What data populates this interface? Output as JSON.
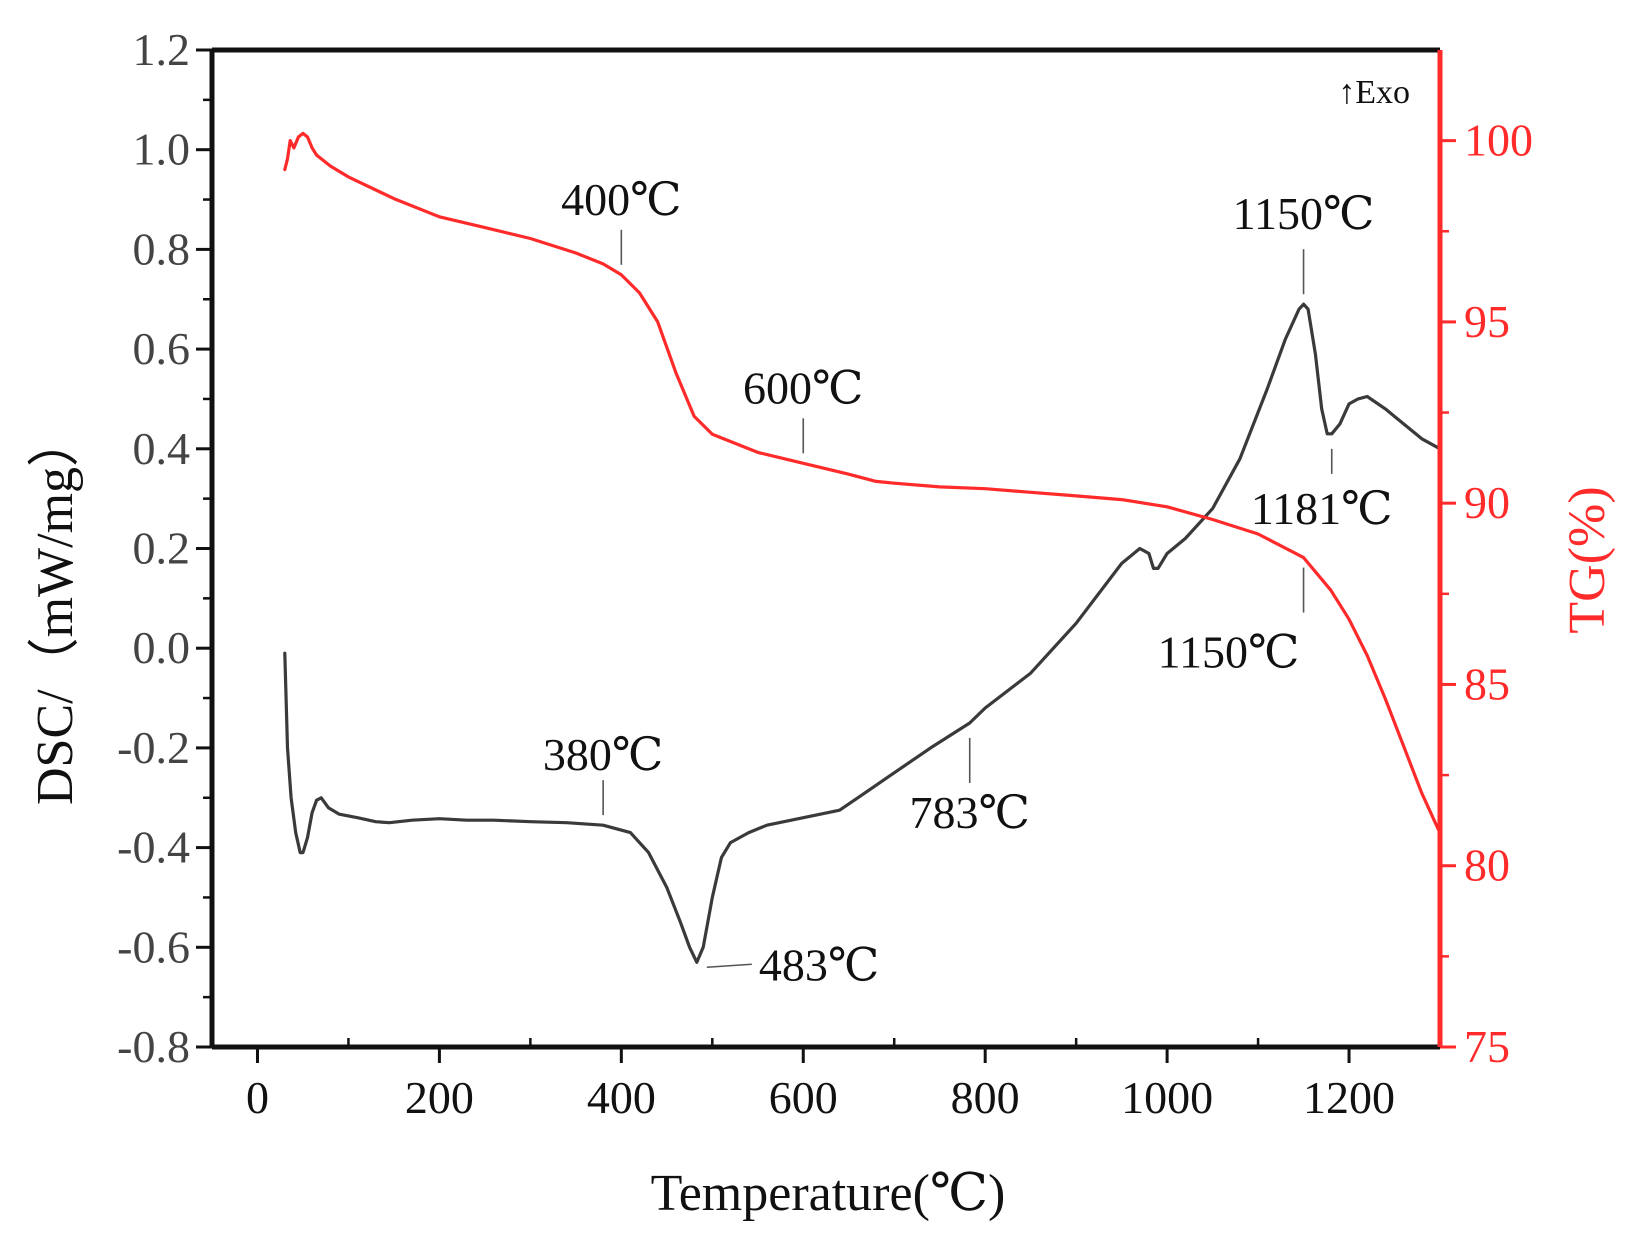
{
  "chart_data": {
    "type": "line",
    "xlabel": "Temperature(℃)",
    "ylabel_left": "DSC/（mW/mg）",
    "ylabel_right": "TG(%)",
    "xlim": [
      -50,
      1300
    ],
    "ylim_left": [
      -0.8,
      1.2
    ],
    "ylim_right": [
      75,
      102.5
    ],
    "x_ticks": [
      0,
      200,
      400,
      600,
      800,
      1000,
      1200
    ],
    "x_tick_labels": [
      "0",
      "200",
      "400",
      "600",
      "800",
      "1000",
      "1200"
    ],
    "y_left_ticks": [
      -0.8,
      -0.6,
      -0.4,
      -0.2,
      0.0,
      0.2,
      0.4,
      0.6,
      0.8,
      1.0,
      1.2
    ],
    "y_left_tick_labels": [
      "-0.8",
      "-0.6",
      "-0.4",
      "-0.2",
      "0.0",
      "0.2",
      "0.4",
      "0.6",
      "0.8",
      "1.0",
      "1.2"
    ],
    "y_right_ticks": [
      75,
      80,
      85,
      90,
      95,
      100
    ],
    "y_right_tick_labels": [
      "75",
      "80",
      "85",
      "90",
      "95",
      "100"
    ],
    "exo_label": "↑Exo",
    "colors": {
      "dsc": "#3a3a3a",
      "tg": "#ff2a2a",
      "axis_right": "#ff2a2a"
    },
    "series": [
      {
        "name": "DSC",
        "axis": "left",
        "x": [
          30,
          33,
          37,
          42,
          47,
          50,
          55,
          60,
          65,
          70,
          78,
          90,
          110,
          130,
          145,
          170,
          200,
          230,
          260,
          300,
          340,
          380,
          410,
          430,
          450,
          465,
          475,
          483,
          490,
          500,
          510,
          520,
          540,
          560,
          600,
          640,
          660,
          700,
          740,
          783,
          800,
          850,
          900,
          950,
          970,
          980,
          985,
          990,
          1000,
          1020,
          1050,
          1080,
          1110,
          1130,
          1145,
          1150,
          1155,
          1163,
          1170,
          1176,
          1181,
          1190,
          1200,
          1210,
          1220,
          1240,
          1260,
          1280,
          1300
        ],
        "values": [
          -0.01,
          -0.2,
          -0.3,
          -0.37,
          -0.41,
          -0.41,
          -0.38,
          -0.33,
          -0.305,
          -0.3,
          -0.32,
          -0.333,
          -0.34,
          -0.348,
          -0.35,
          -0.345,
          -0.342,
          -0.345,
          -0.345,
          -0.348,
          -0.35,
          -0.355,
          -0.37,
          -0.41,
          -0.48,
          -0.55,
          -0.6,
          -0.63,
          -0.6,
          -0.5,
          -0.42,
          -0.39,
          -0.37,
          -0.355,
          -0.34,
          -0.325,
          -0.3,
          -0.25,
          -0.2,
          -0.15,
          -0.12,
          -0.05,
          0.05,
          0.17,
          0.2,
          0.19,
          0.16,
          0.16,
          0.19,
          0.22,
          0.28,
          0.38,
          0.52,
          0.62,
          0.68,
          0.69,
          0.68,
          0.59,
          0.48,
          0.43,
          0.43,
          0.45,
          0.49,
          0.5,
          0.505,
          0.48,
          0.45,
          0.42,
          0.4
        ]
      },
      {
        "name": "TG",
        "axis": "right",
        "x": [
          30,
          33,
          36,
          40,
          45,
          50,
          55,
          60,
          65,
          70,
          80,
          100,
          150,
          200,
          250,
          300,
          350,
          380,
          400,
          420,
          440,
          460,
          480,
          500,
          520,
          550,
          600,
          650,
          680,
          700,
          750,
          800,
          850,
          900,
          950,
          1000,
          1050,
          1100,
          1150,
          1180,
          1200,
          1220,
          1240,
          1260,
          1280,
          1300
        ],
        "values": [
          99.2,
          99.5,
          100.0,
          99.8,
          100.1,
          100.2,
          100.1,
          99.8,
          99.6,
          99.5,
          99.3,
          99.0,
          98.4,
          97.9,
          97.6,
          97.3,
          96.9,
          96.6,
          96.3,
          95.8,
          95.0,
          93.6,
          92.4,
          91.9,
          91.7,
          91.4,
          91.1,
          90.8,
          90.6,
          90.55,
          90.45,
          90.4,
          90.3,
          90.2,
          90.1,
          89.9,
          89.55,
          89.15,
          88.5,
          87.6,
          86.8,
          85.8,
          84.6,
          83.3,
          82.0,
          80.9
        ]
      }
    ],
    "annotations": [
      {
        "text": "400℃",
        "series": "TG",
        "x": 400,
        "y": 96.3
      },
      {
        "text": "600℃",
        "series": "TG",
        "x": 600,
        "y": 91.1
      },
      {
        "text": "1150℃",
        "series": "TG",
        "x": 1150,
        "y": 88.5
      },
      {
        "text": "1150℃",
        "series": "DSC",
        "x": 1150,
        "y": 0.69
      },
      {
        "text": "1181℃",
        "series": "DSC",
        "x": 1181,
        "y": 0.43
      },
      {
        "text": "380℃",
        "series": "DSC",
        "x": 380,
        "y": -0.355
      },
      {
        "text": "483℃",
        "series": "DSC",
        "x": 483,
        "y": -0.63
      },
      {
        "text": "783℃",
        "series": "DSC",
        "x": 783,
        "y": -0.15
      }
    ]
  }
}
